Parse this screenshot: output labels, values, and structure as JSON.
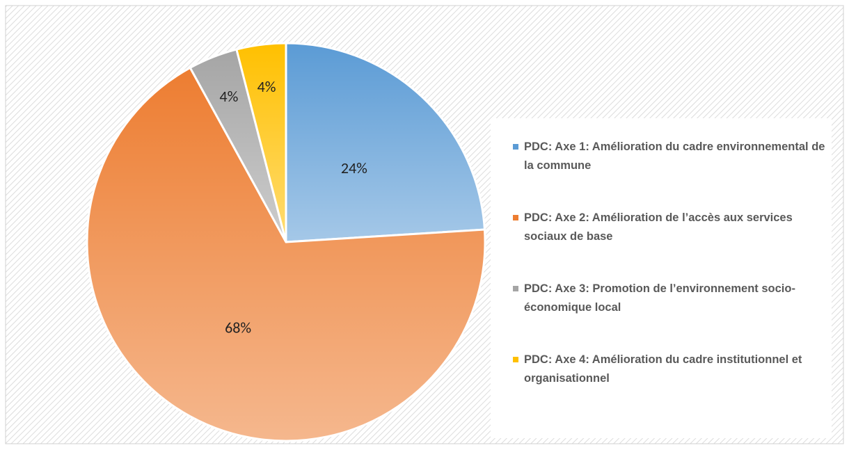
{
  "chart_data": {
    "type": "pie",
    "categories": [
      "PDC: Axe 1: Amélioration du cadre environnemental de la commune",
      "PDC: Axe 2: Amélioration de l’accès aux services sociaux de base",
      "PDC: Axe 3: Promotion de l’environnement socio-économique local",
      "PDC: Axe 4: Amélioration du cadre institutionnel et organisationnel"
    ],
    "values": [
      24,
      68,
      4,
      4
    ],
    "value_labels": [
      "24%",
      "68%",
      "4%",
      "4%"
    ],
    "colors": [
      "#5b9bd5",
      "#ed7d31",
      "#a5a5a5",
      "#ffc000"
    ],
    "legend": "right"
  }
}
